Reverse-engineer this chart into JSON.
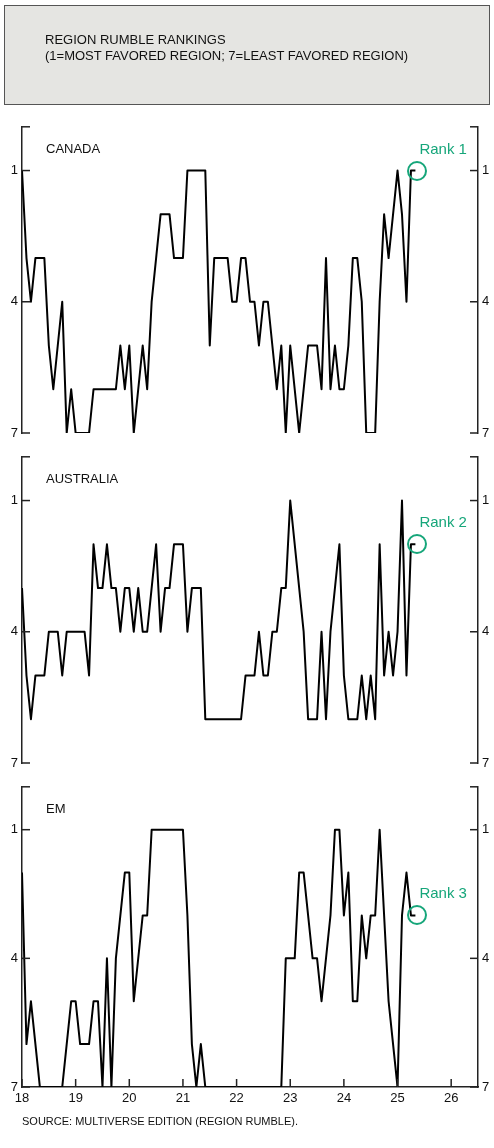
{
  "chart_data": [
    {
      "type": "line",
      "title": "REGION RUMBLE RANKINGS",
      "subtitle": "(1=MOST FAVORED REGION; 7=LEAST FAVORED REGION)",
      "legend": false,
      "tick_labels": "y",
      "xlim": [
        "2018-01",
        "2026-07"
      ],
      "ylim": [
        7,
        0
      ],
      "yticks": [
        1,
        4,
        7
      ],
      "y2lim": [
        7,
        0
      ],
      "y2ticks": [
        1,
        4,
        7
      ],
      "annotations": [
        {
          "text": "Rank 1",
          "x": "2025-05",
          "y": 1
        }
      ],
      "series": [
        {
          "name": "CANADA",
          "color": "#000000",
          "x": [
            "2018-01",
            "2018-02",
            "2018-03",
            "2018-04",
            "2018-06",
            "2018-07",
            "2018-08",
            "2018-10",
            "2018-11",
            "2018-12",
            "2019-01",
            "2019-04",
            "2019-05",
            "2019-10",
            "2019-11",
            "2019-12",
            "2020-01",
            "2020-02",
            "2020-04",
            "2020-05",
            "2020-06",
            "2020-07",
            "2020-08",
            "2020-10",
            "2020-11",
            "2021-01",
            "2021-02",
            "2021-06",
            "2021-07",
            "2021-08",
            "2021-11",
            "2021-12",
            "2022-01",
            "2022-02",
            "2022-03",
            "2022-04",
            "2022-05",
            "2022-06",
            "2022-07",
            "2022-08",
            "2022-10",
            "2022-11",
            "2022-12",
            "2023-01",
            "2023-03",
            "2023-05",
            "2023-07",
            "2023-08",
            "2023-09",
            "2023-10",
            "2023-11",
            "2023-12",
            "2024-01",
            "2024-02",
            "2024-03",
            "2024-04",
            "2024-05",
            "2024-06",
            "2024-08",
            "2024-09",
            "2024-10",
            "2024-11",
            "2025-01",
            "2025-02",
            "2025-03",
            "2025-04",
            "2025-05"
          ],
          "values": [
            1,
            3,
            4,
            3,
            3,
            5,
            6,
            4,
            7,
            6,
            7,
            7,
            6,
            6,
            5,
            6,
            5,
            7,
            5,
            6,
            4,
            3,
            2,
            2,
            3,
            3,
            1,
            1,
            5,
            3,
            3,
            4,
            4,
            3,
            3,
            4,
            4,
            5,
            4,
            4,
            6,
            5,
            7,
            5,
            7,
            5,
            5,
            6,
            3,
            6,
            5,
            6,
            6,
            5,
            3,
            3,
            4,
            7,
            7,
            4,
            2,
            3,
            1,
            2,
            4,
            1,
            1
          ]
        }
      ]
    },
    {
      "type": "line",
      "legend": false,
      "tick_labels": "y",
      "xlim": [
        "2018-01",
        "2026-07"
      ],
      "ylim": [
        7,
        0
      ],
      "yticks": [
        1,
        4,
        7
      ],
      "y2lim": [
        7,
        0
      ],
      "y2ticks": [
        1,
        4,
        7
      ],
      "annotations": [
        {
          "text": "Rank 2",
          "x": "2025-05",
          "y": 2
        }
      ],
      "series": [
        {
          "name": "AUSTRALIA",
          "color": "#000000",
          "x": [
            "2018-01",
            "2018-02",
            "2018-03",
            "2018-04",
            "2018-06",
            "2018-07",
            "2018-09",
            "2018-10",
            "2018-11",
            "2019-03",
            "2019-04",
            "2019-05",
            "2019-06",
            "2019-07",
            "2019-08",
            "2019-09",
            "2019-10",
            "2019-11",
            "2019-12",
            "2020-01",
            "2020-02",
            "2020-03",
            "2020-04",
            "2020-05",
            "2020-07",
            "2020-08",
            "2020-09",
            "2020-10",
            "2020-11",
            "2021-01",
            "2021-02",
            "2021-03",
            "2021-05",
            "2021-06",
            "2022-02",
            "2022-03",
            "2022-05",
            "2022-06",
            "2022-07",
            "2022-08",
            "2022-09",
            "2022-10",
            "2022-11",
            "2022-12",
            "2023-01",
            "2023-04",
            "2023-05",
            "2023-07",
            "2023-08",
            "2023-09",
            "2023-10",
            "2023-12",
            "2024-01",
            "2024-02",
            "2024-04",
            "2024-05",
            "2024-06",
            "2024-07",
            "2024-08",
            "2024-09",
            "2024-10",
            "2024-11",
            "2024-12",
            "2025-01",
            "2025-02",
            "2025-03",
            "2025-04",
            "2025-05"
          ],
          "values": [
            3,
            5,
            6,
            5,
            5,
            4,
            4,
            5,
            4,
            4,
            5,
            2,
            3,
            3,
            2,
            3,
            3,
            4,
            3,
            3,
            4,
            3,
            4,
            4,
            2,
            4,
            3,
            3,
            2,
            2,
            4,
            3,
            3,
            6,
            6,
            5,
            5,
            4,
            5,
            5,
            4,
            4,
            3,
            3,
            1,
            4,
            6,
            6,
            4,
            6,
            4,
            2,
            5,
            6,
            6,
            5,
            6,
            5,
            6,
            2,
            5,
            4,
            5,
            4,
            1,
            5,
            2,
            2
          ]
        }
      ]
    },
    {
      "type": "line",
      "legend": false,
      "xlim": [
        "2018-01",
        "2026-07"
      ],
      "xticks": [
        {
          "value": "2018-01",
          "label": "18"
        },
        {
          "value": "2019-01",
          "label": "19"
        },
        {
          "value": "2020-01",
          "label": "20"
        },
        {
          "value": "2021-01",
          "label": "21"
        },
        {
          "value": "2022-01",
          "label": "22"
        },
        {
          "value": "2023-01",
          "label": "23"
        },
        {
          "value": "2024-01",
          "label": "24"
        },
        {
          "value": "2025-01",
          "label": "25"
        },
        {
          "value": "2026-01",
          "label": "26"
        }
      ],
      "ylim": [
        7,
        0
      ],
      "yticks": [
        1,
        4,
        7
      ],
      "y2lim": [
        7,
        0
      ],
      "y2ticks": [
        1,
        4,
        7
      ],
      "annotations": [
        {
          "text": "Rank 3",
          "x": "2025-05",
          "y": 3
        },
        "SOURCE: MULTIVERSE EDITION (REGION RUMBLE)."
      ],
      "series": [
        {
          "name": "EM",
          "color": "#000000",
          "x": [
            "2018-01",
            "2018-02",
            "2018-03",
            "2018-05",
            "2018-10",
            "2018-12",
            "2019-01",
            "2019-02",
            "2019-04",
            "2019-05",
            "2019-06",
            "2019-07",
            "2019-08",
            "2019-09",
            "2019-10",
            "2019-12",
            "2020-01",
            "2020-02",
            "2020-04",
            "2020-05",
            "2020-06",
            "2021-01",
            "2021-02",
            "2021-03",
            "2021-04",
            "2021-05",
            "2021-06",
            "2022-11",
            "2022-12",
            "2023-02",
            "2023-03",
            "2023-04",
            "2023-06",
            "2023-07",
            "2023-08",
            "2023-10",
            "2023-11",
            "2023-12",
            "2024-01",
            "2024-02",
            "2024-03",
            "2024-04",
            "2024-05",
            "2024-06",
            "2024-07",
            "2024-08",
            "2024-09",
            "2024-11",
            "2025-01",
            "2025-02",
            "2025-03",
            "2025-04",
            "2025-05"
          ],
          "values": [
            2,
            6,
            5,
            7,
            7,
            5,
            5,
            6,
            6,
            5,
            5,
            7,
            4,
            7,
            4,
            2,
            2,
            5,
            3,
            3,
            1,
            1,
            3,
            6,
            7,
            6,
            7,
            7,
            4,
            4,
            2,
            2,
            4,
            4,
            5,
            3,
            1,
            1,
            3,
            2,
            5,
            5,
            3,
            4,
            3,
            3,
            1,
            5,
            7,
            3,
            2,
            3,
            3
          ]
        }
      ]
    }
  ]
}
